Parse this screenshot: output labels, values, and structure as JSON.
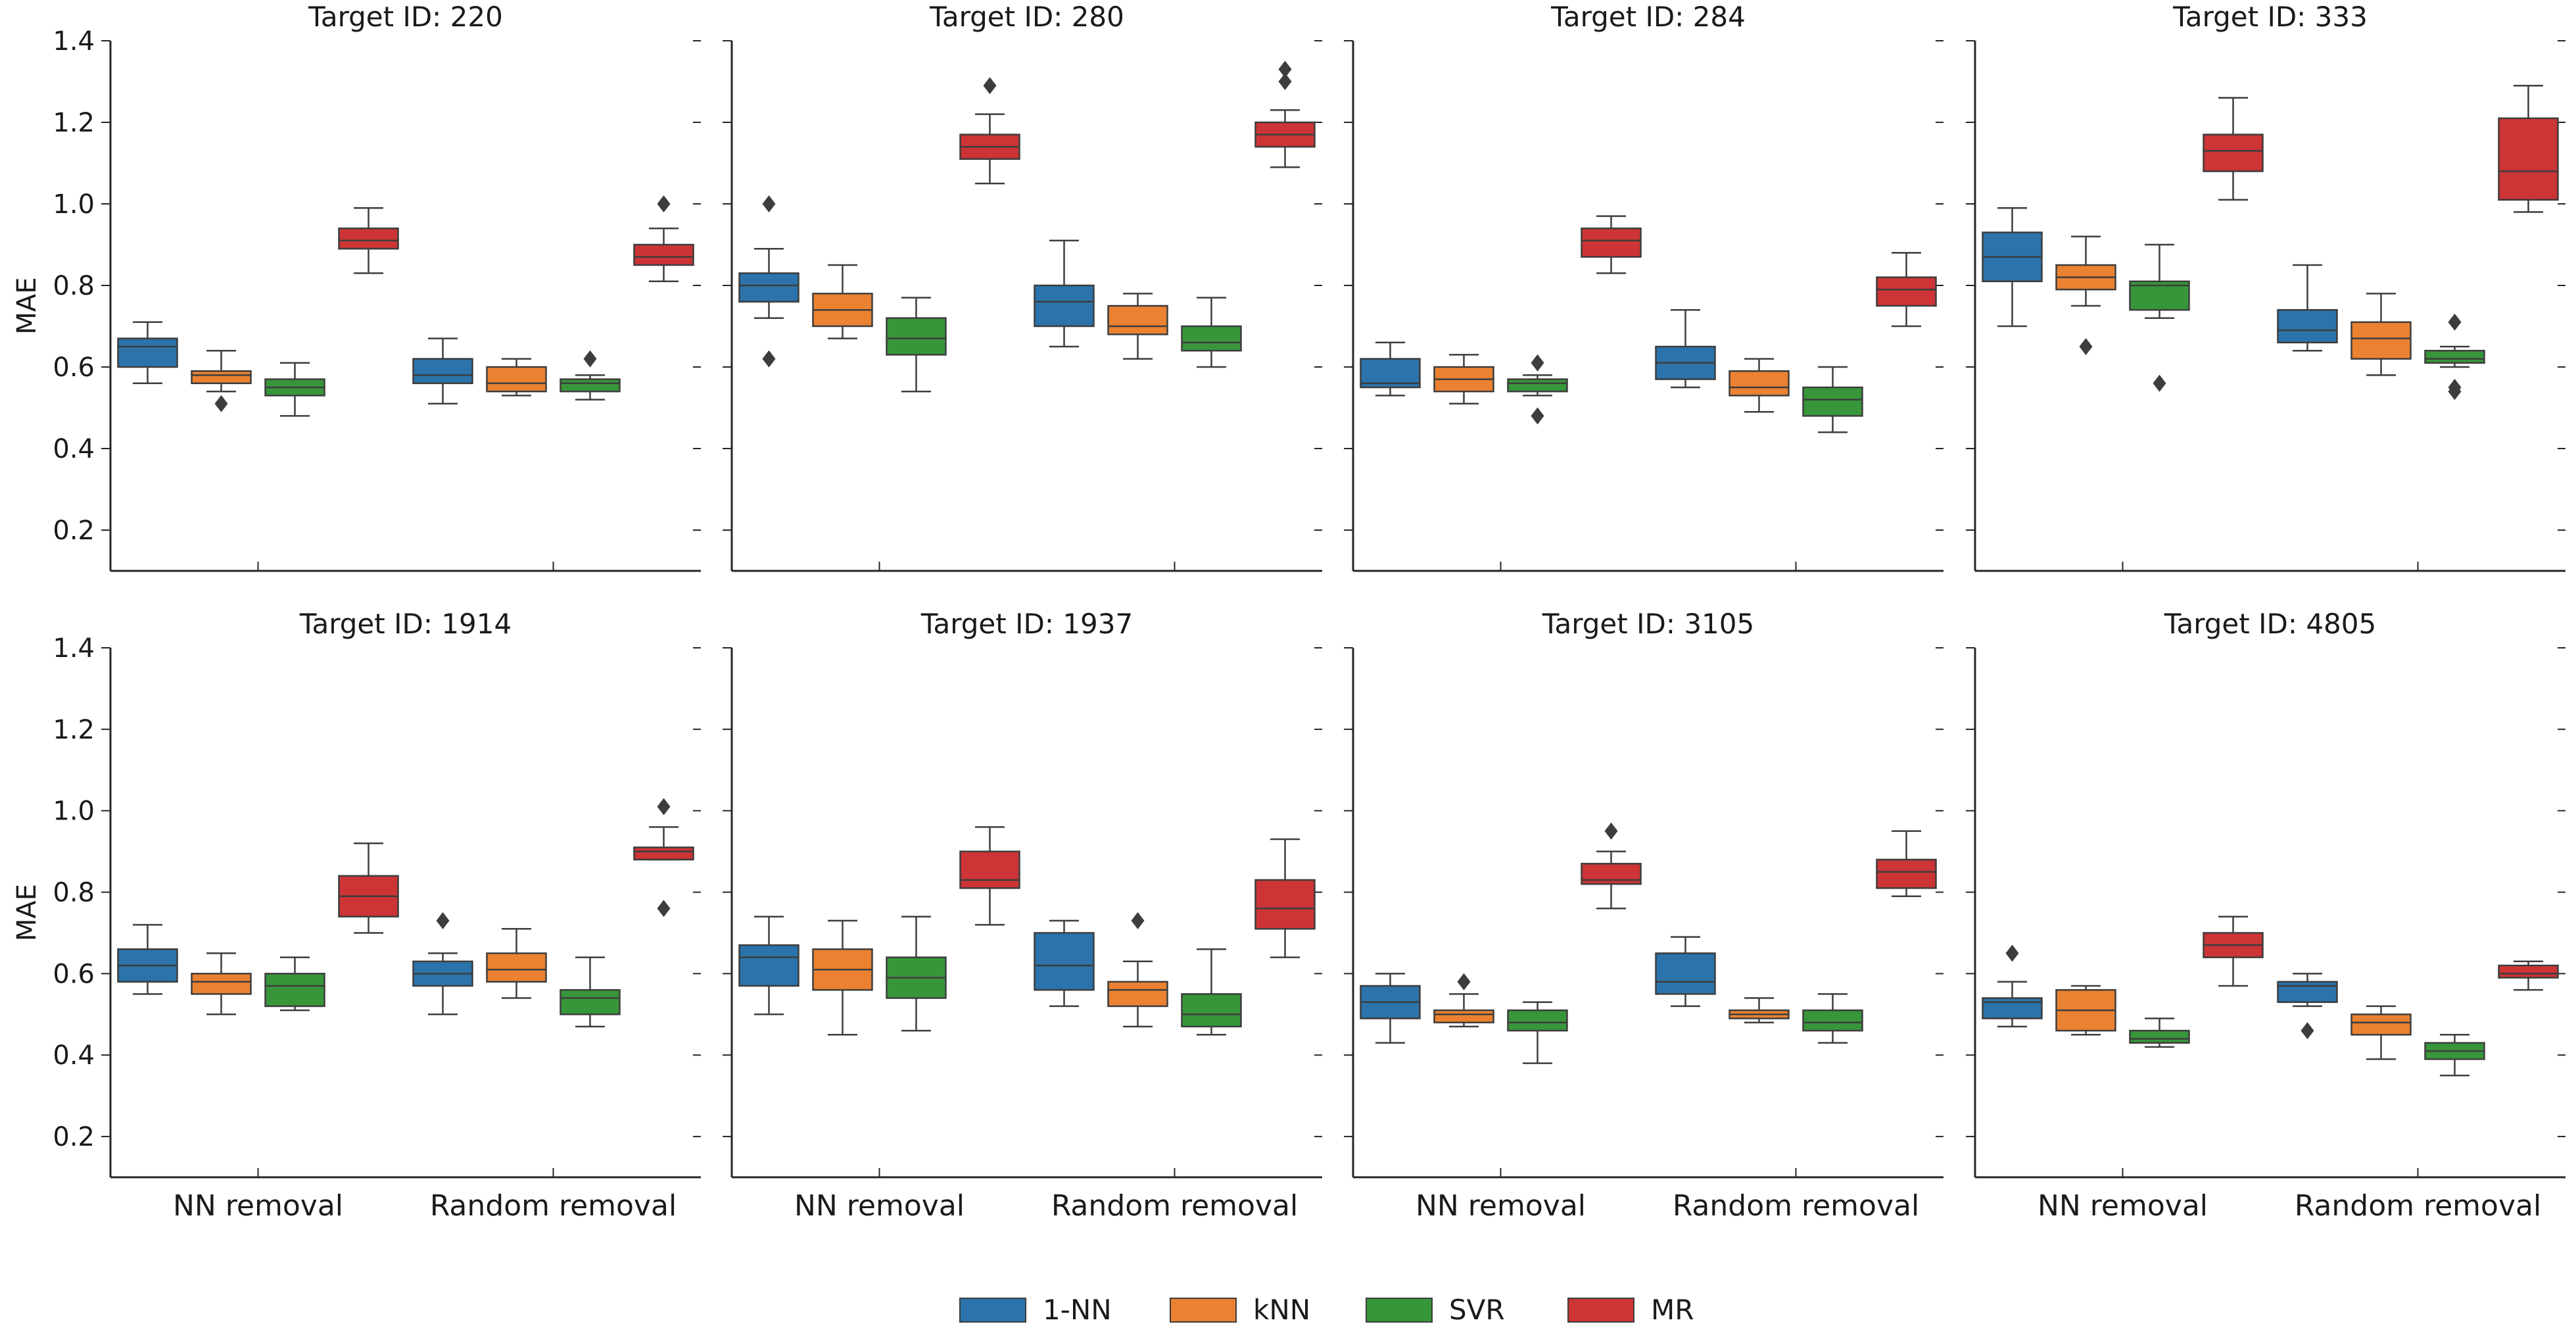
{
  "chart_data": {
    "type": "box",
    "ylabel": "MAE",
    "ylim": [
      0.1,
      1.4
    ],
    "yticks": [
      "0.2",
      "0.4",
      "0.6",
      "0.8",
      "1.0",
      "1.2",
      "1.4"
    ],
    "categories": [
      "NN removal",
      "Random removal"
    ],
    "legend": {
      "placement": "bottom-center",
      "entries": [
        {
          "name": "1-NN",
          "color": "#2b73aa"
        },
        {
          "name": "kNN",
          "color": "#ea8231"
        },
        {
          "name": "SVR",
          "color": "#37963a"
        },
        {
          "name": "MR",
          "color": "#cc3435"
        }
      ]
    },
    "panels": [
      {
        "title": "Target ID: 220",
        "groups": [
          [
            {
              "min": 0.56,
              "q1": 0.6,
              "med": 0.65,
              "q3": 0.67,
              "max": 0.71,
              "fliers": []
            },
            {
              "min": 0.54,
              "q1": 0.56,
              "med": 0.58,
              "q3": 0.59,
              "max": 0.64,
              "fliers": [
                0.51
              ]
            },
            {
              "min": 0.48,
              "q1": 0.53,
              "med": 0.55,
              "q3": 0.57,
              "max": 0.61,
              "fliers": []
            },
            {
              "min": 0.83,
              "q1": 0.89,
              "med": 0.91,
              "q3": 0.94,
              "max": 0.99,
              "fliers": []
            }
          ],
          [
            {
              "min": 0.51,
              "q1": 0.56,
              "med": 0.58,
              "q3": 0.62,
              "max": 0.67,
              "fliers": []
            },
            {
              "min": 0.53,
              "q1": 0.54,
              "med": 0.56,
              "q3": 0.6,
              "max": 0.62,
              "fliers": []
            },
            {
              "min": 0.52,
              "q1": 0.54,
              "med": 0.56,
              "q3": 0.57,
              "max": 0.58,
              "fliers": [
                0.62
              ]
            },
            {
              "min": 0.81,
              "q1": 0.85,
              "med": 0.87,
              "q3": 0.9,
              "max": 0.94,
              "fliers": [
                1.0
              ]
            }
          ]
        ]
      },
      {
        "title": "Target ID: 280",
        "groups": [
          [
            {
              "min": 0.72,
              "q1": 0.76,
              "med": 0.8,
              "q3": 0.83,
              "max": 0.89,
              "fliers": [
                1.0,
                0.62
              ]
            },
            {
              "min": 0.67,
              "q1": 0.7,
              "med": 0.74,
              "q3": 0.78,
              "max": 0.85,
              "fliers": []
            },
            {
              "min": 0.54,
              "q1": 0.63,
              "med": 0.67,
              "q3": 0.72,
              "max": 0.77,
              "fliers": []
            },
            {
              "min": 1.05,
              "q1": 1.11,
              "med": 1.14,
              "q3": 1.17,
              "max": 1.22,
              "fliers": [
                1.29
              ]
            }
          ],
          [
            {
              "min": 0.65,
              "q1": 0.7,
              "med": 0.76,
              "q3": 0.8,
              "max": 0.91,
              "fliers": []
            },
            {
              "min": 0.62,
              "q1": 0.68,
              "med": 0.7,
              "q3": 0.75,
              "max": 0.78,
              "fliers": []
            },
            {
              "min": 0.6,
              "q1": 0.64,
              "med": 0.66,
              "q3": 0.7,
              "max": 0.77,
              "fliers": []
            },
            {
              "min": 1.09,
              "q1": 1.14,
              "med": 1.17,
              "q3": 1.2,
              "max": 1.23,
              "fliers": [
                1.3,
                1.33
              ]
            }
          ]
        ]
      },
      {
        "title": "Target ID: 284",
        "groups": [
          [
            {
              "min": 0.53,
              "q1": 0.55,
              "med": 0.56,
              "q3": 0.62,
              "max": 0.66,
              "fliers": []
            },
            {
              "min": 0.51,
              "q1": 0.54,
              "med": 0.57,
              "q3": 0.6,
              "max": 0.63,
              "fliers": []
            },
            {
              "min": 0.53,
              "q1": 0.54,
              "med": 0.56,
              "q3": 0.57,
              "max": 0.58,
              "fliers": [
                0.61,
                0.48
              ]
            },
            {
              "min": 0.83,
              "q1": 0.87,
              "med": 0.91,
              "q3": 0.94,
              "max": 0.97,
              "fliers": []
            }
          ],
          [
            {
              "min": 0.55,
              "q1": 0.57,
              "med": 0.61,
              "q3": 0.65,
              "max": 0.74,
              "fliers": []
            },
            {
              "min": 0.49,
              "q1": 0.53,
              "med": 0.55,
              "q3": 0.59,
              "max": 0.62,
              "fliers": []
            },
            {
              "min": 0.44,
              "q1": 0.48,
              "med": 0.52,
              "q3": 0.55,
              "max": 0.6,
              "fliers": []
            },
            {
              "min": 0.7,
              "q1": 0.75,
              "med": 0.79,
              "q3": 0.82,
              "max": 0.88,
              "fliers": []
            }
          ]
        ]
      },
      {
        "title": "Target ID: 333",
        "groups": [
          [
            {
              "min": 0.7,
              "q1": 0.81,
              "med": 0.87,
              "q3": 0.93,
              "max": 0.99,
              "fliers": []
            },
            {
              "min": 0.75,
              "q1": 0.79,
              "med": 0.82,
              "q3": 0.85,
              "max": 0.92,
              "fliers": [
                0.65
              ]
            },
            {
              "min": 0.72,
              "q1": 0.74,
              "med": 0.8,
              "q3": 0.81,
              "max": 0.9,
              "fliers": [
                0.56
              ]
            },
            {
              "min": 1.01,
              "q1": 1.08,
              "med": 1.13,
              "q3": 1.17,
              "max": 1.26,
              "fliers": []
            }
          ],
          [
            {
              "min": 0.64,
              "q1": 0.66,
              "med": 0.69,
              "q3": 0.74,
              "max": 0.85,
              "fliers": []
            },
            {
              "min": 0.58,
              "q1": 0.62,
              "med": 0.67,
              "q3": 0.71,
              "max": 0.78,
              "fliers": []
            },
            {
              "min": 0.6,
              "q1": 0.61,
              "med": 0.62,
              "q3": 0.64,
              "max": 0.65,
              "fliers": [
                0.71,
                0.55,
                0.54
              ]
            },
            {
              "min": 0.98,
              "q1": 1.01,
              "med": 1.08,
              "q3": 1.21,
              "max": 1.29,
              "fliers": []
            }
          ]
        ]
      },
      {
        "title": "Target ID: 1914",
        "groups": [
          [
            {
              "min": 0.55,
              "q1": 0.58,
              "med": 0.62,
              "q3": 0.66,
              "max": 0.72,
              "fliers": []
            },
            {
              "min": 0.5,
              "q1": 0.55,
              "med": 0.58,
              "q3": 0.6,
              "max": 0.65,
              "fliers": []
            },
            {
              "min": 0.51,
              "q1": 0.52,
              "med": 0.57,
              "q3": 0.6,
              "max": 0.64,
              "fliers": []
            },
            {
              "min": 0.7,
              "q1": 0.74,
              "med": 0.79,
              "q3": 0.84,
              "max": 0.92,
              "fliers": []
            }
          ],
          [
            {
              "min": 0.5,
              "q1": 0.57,
              "med": 0.6,
              "q3": 0.63,
              "max": 0.65,
              "fliers": [
                0.73
              ]
            },
            {
              "min": 0.54,
              "q1": 0.58,
              "med": 0.61,
              "q3": 0.65,
              "max": 0.71,
              "fliers": []
            },
            {
              "min": 0.47,
              "q1": 0.5,
              "med": 0.54,
              "q3": 0.56,
              "max": 0.64,
              "fliers": []
            },
            {
              "min": 0.88,
              "q1": 0.88,
              "med": 0.9,
              "q3": 0.91,
              "max": 0.96,
              "fliers": [
                1.01,
                0.76
              ]
            }
          ]
        ]
      },
      {
        "title": "Target ID: 1937",
        "groups": [
          [
            {
              "min": 0.5,
              "q1": 0.57,
              "med": 0.64,
              "q3": 0.67,
              "max": 0.74,
              "fliers": []
            },
            {
              "min": 0.45,
              "q1": 0.56,
              "med": 0.61,
              "q3": 0.66,
              "max": 0.73,
              "fliers": []
            },
            {
              "min": 0.46,
              "q1": 0.54,
              "med": 0.59,
              "q3": 0.64,
              "max": 0.74,
              "fliers": []
            },
            {
              "min": 0.72,
              "q1": 0.81,
              "med": 0.83,
              "q3": 0.9,
              "max": 0.96,
              "fliers": []
            }
          ],
          [
            {
              "min": 0.52,
              "q1": 0.56,
              "med": 0.62,
              "q3": 0.7,
              "max": 0.73,
              "fliers": []
            },
            {
              "min": 0.47,
              "q1": 0.52,
              "med": 0.56,
              "q3": 0.58,
              "max": 0.63,
              "fliers": [
                0.73
              ]
            },
            {
              "min": 0.45,
              "q1": 0.47,
              "med": 0.5,
              "q3": 0.55,
              "max": 0.66,
              "fliers": []
            },
            {
              "min": 0.64,
              "q1": 0.71,
              "med": 0.76,
              "q3": 0.83,
              "max": 0.93,
              "fliers": []
            }
          ]
        ]
      },
      {
        "title": "Target ID: 3105",
        "groups": [
          [
            {
              "min": 0.43,
              "q1": 0.49,
              "med": 0.53,
              "q3": 0.57,
              "max": 0.6,
              "fliers": []
            },
            {
              "min": 0.47,
              "q1": 0.48,
              "med": 0.5,
              "q3": 0.51,
              "max": 0.55,
              "fliers": [
                0.58
              ]
            },
            {
              "min": 0.38,
              "q1": 0.46,
              "med": 0.48,
              "q3": 0.51,
              "max": 0.53,
              "fliers": []
            },
            {
              "min": 0.76,
              "q1": 0.82,
              "med": 0.83,
              "q3": 0.87,
              "max": 0.9,
              "fliers": [
                0.95
              ]
            }
          ],
          [
            {
              "min": 0.52,
              "q1": 0.55,
              "med": 0.58,
              "q3": 0.65,
              "max": 0.69,
              "fliers": []
            },
            {
              "min": 0.48,
              "q1": 0.49,
              "med": 0.5,
              "q3": 0.51,
              "max": 0.54,
              "fliers": []
            },
            {
              "min": 0.43,
              "q1": 0.46,
              "med": 0.48,
              "q3": 0.51,
              "max": 0.55,
              "fliers": []
            },
            {
              "min": 0.79,
              "q1": 0.81,
              "med": 0.85,
              "q3": 0.88,
              "max": 0.95,
              "fliers": []
            }
          ]
        ]
      },
      {
        "title": "Target ID: 4805",
        "groups": [
          [
            {
              "min": 0.47,
              "q1": 0.49,
              "med": 0.53,
              "q3": 0.54,
              "max": 0.58,
              "fliers": [
                0.65
              ]
            },
            {
              "min": 0.45,
              "q1": 0.46,
              "med": 0.51,
              "q3": 0.56,
              "max": 0.57,
              "fliers": []
            },
            {
              "min": 0.42,
              "q1": 0.43,
              "med": 0.44,
              "q3": 0.46,
              "max": 0.49,
              "fliers": []
            },
            {
              "min": 0.57,
              "q1": 0.64,
              "med": 0.67,
              "q3": 0.7,
              "max": 0.74,
              "fliers": []
            }
          ],
          [
            {
              "min": 0.52,
              "q1": 0.53,
              "med": 0.57,
              "q3": 0.58,
              "max": 0.6,
              "fliers": [
                0.46
              ]
            },
            {
              "min": 0.39,
              "q1": 0.45,
              "med": 0.48,
              "q3": 0.5,
              "max": 0.52,
              "fliers": []
            },
            {
              "min": 0.35,
              "q1": 0.39,
              "med": 0.41,
              "q3": 0.43,
              "max": 0.45,
              "fliers": []
            },
            {
              "min": 0.56,
              "q1": 0.59,
              "med": 0.6,
              "q3": 0.62,
              "max": 0.63,
              "fliers": []
            }
          ]
        ]
      }
    ]
  }
}
